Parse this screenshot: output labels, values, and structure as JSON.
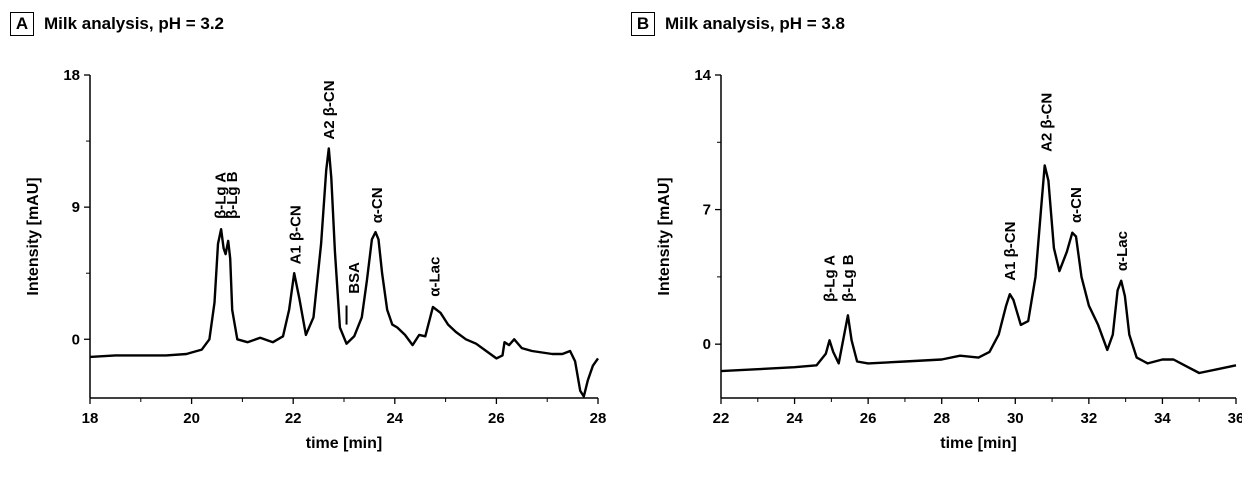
{
  "chart_data": [
    {
      "panel_label": "A",
      "type": "line",
      "title": "Milk analysis, pH = 3.2",
      "xlabel": "time [min]",
      "ylabel": "Intensity [mAU]",
      "xlim": [
        18,
        28
      ],
      "ylim": [
        -4,
        18
      ],
      "xticks": [
        18,
        20,
        22,
        24,
        26,
        28
      ],
      "yticks": [
        0,
        9,
        18
      ],
      "series": [
        {
          "x": [
            18.0,
            18.5,
            19.0,
            19.5,
            19.9,
            20.0,
            20.2,
            20.35,
            20.45,
            20.52,
            20.58,
            20.63,
            20.67,
            20.72,
            20.76,
            20.8,
            20.9,
            21.1,
            21.35,
            21.6,
            21.8,
            21.92,
            22.02,
            22.12,
            22.25,
            22.4,
            22.55,
            22.65,
            22.7,
            22.75,
            22.82,
            22.92,
            23.05,
            23.2,
            23.35,
            23.45,
            23.55,
            23.62,
            23.68,
            23.75,
            23.85,
            23.95,
            24.05,
            24.2,
            24.35,
            24.48,
            24.6,
            24.75,
            24.9,
            25.05,
            25.2,
            25.4,
            25.6,
            25.8,
            26.0,
            26.12,
            26.16,
            26.25,
            26.35,
            26.5,
            26.7,
            26.9,
            27.1,
            27.3,
            27.45,
            27.55,
            27.65,
            27.72,
            27.8,
            27.9,
            28.0
          ],
          "y": [
            -1.2,
            -1.1,
            -1.1,
            -1.1,
            -1.0,
            -0.9,
            -0.7,
            0.0,
            2.5,
            6.5,
            7.5,
            6.2,
            5.8,
            6.7,
            5.5,
            2.0,
            0.0,
            -0.2,
            0.1,
            -0.2,
            0.2,
            2.0,
            4.5,
            2.8,
            0.3,
            1.5,
            6.5,
            11.5,
            13.0,
            11.0,
            6.0,
            0.8,
            -0.3,
            0.2,
            1.5,
            4.0,
            6.8,
            7.3,
            6.8,
            4.5,
            2.0,
            1.0,
            0.8,
            0.3,
            -0.4,
            0.3,
            0.2,
            2.2,
            1.8,
            1.0,
            0.5,
            0.0,
            -0.3,
            -0.8,
            -1.3,
            -1.1,
            -0.2,
            -0.4,
            0.0,
            -0.6,
            -0.8,
            -0.9,
            -1.0,
            -1.0,
            -0.8,
            -1.5,
            -3.5,
            -3.9,
            -2.8,
            -1.8,
            -1.3
          ]
        }
      ],
      "annotations": [
        {
          "text": "β-Lg A",
          "x": 20.57,
          "y": 8.2
        },
        {
          "text": "β-Lg B",
          "x": 20.8,
          "y": 8.2
        },
        {
          "text": "A1 β-CN",
          "x": 22.05,
          "y": 5.1
        },
        {
          "text": "A2 β-CN",
          "x": 22.7,
          "y": 13.6
        },
        {
          "text": "BSA",
          "x": 23.2,
          "y": 3.1
        },
        {
          "text": "α-CN",
          "x": 23.65,
          "y": 7.9
        },
        {
          "text": "α-Lac",
          "x": 24.78,
          "y": 2.9
        }
      ],
      "markers": [
        {
          "x": 23.05,
          "y1": 1.0,
          "y2": 2.3
        }
      ]
    },
    {
      "panel_label": "B",
      "type": "line",
      "title": "Milk analysis, pH = 3.8",
      "xlabel": "time [min]",
      "ylabel": "Intensity [mAU]",
      "xlim": [
        22,
        36
      ],
      "ylim": [
        -2.8,
        14
      ],
      "xticks": [
        22,
        24,
        26,
        28,
        30,
        32,
        34,
        36
      ],
      "yticks": [
        0,
        7,
        14
      ],
      "series": [
        {
          "x": [
            22.0,
            23.0,
            24.0,
            24.6,
            24.85,
            24.95,
            25.05,
            25.2,
            25.35,
            25.45,
            25.55,
            25.7,
            26.0,
            27.0,
            28.0,
            28.5,
            29.0,
            29.3,
            29.55,
            29.75,
            29.85,
            29.95,
            30.15,
            30.35,
            30.55,
            30.7,
            30.8,
            30.9,
            31.05,
            31.2,
            31.4,
            31.55,
            31.65,
            31.8,
            32.0,
            32.25,
            32.5,
            32.65,
            32.78,
            32.88,
            32.98,
            33.1,
            33.3,
            33.6,
            34.0,
            34.3,
            34.6,
            35.0,
            35.5,
            36.0
          ],
          "y": [
            -1.4,
            -1.3,
            -1.2,
            -1.1,
            -0.5,
            0.2,
            -0.4,
            -1.0,
            0.5,
            1.5,
            0.2,
            -0.9,
            -1.0,
            -0.9,
            -0.8,
            -0.6,
            -0.7,
            -0.4,
            0.5,
            2.0,
            2.6,
            2.3,
            1.0,
            1.2,
            3.5,
            7.0,
            9.3,
            8.5,
            5.0,
            3.8,
            4.8,
            5.8,
            5.6,
            3.5,
            2.0,
            1.0,
            -0.3,
            0.5,
            2.8,
            3.3,
            2.5,
            0.5,
            -0.7,
            -1.0,
            -0.8,
            -0.8,
            -1.1,
            -1.5,
            -1.3,
            -1.1
          ]
        }
      ],
      "annotations": [
        {
          "text": "β-Lg A",
          "x": 24.95,
          "y": 2.2
        },
        {
          "text": "β-Lg B",
          "x": 25.45,
          "y": 2.2
        },
        {
          "text": "A1 β-CN",
          "x": 29.85,
          "y": 3.3
        },
        {
          "text": "A2 β-CN",
          "x": 30.85,
          "y": 10.0
        },
        {
          "text": "α-CN",
          "x": 31.65,
          "y": 6.3
        },
        {
          "text": "α-Lac",
          "x": 32.9,
          "y": 3.8
        }
      ],
      "markers": []
    }
  ]
}
